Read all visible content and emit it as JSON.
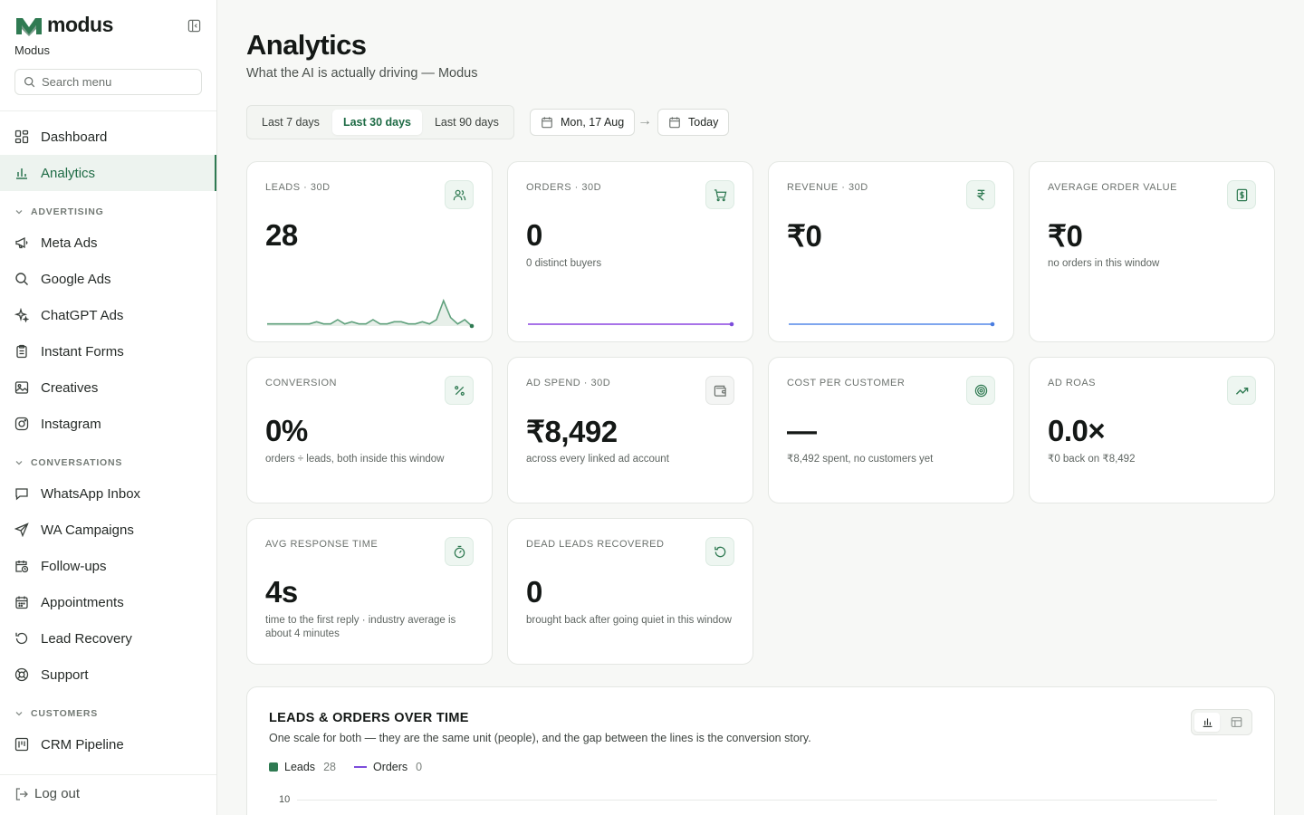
{
  "brand": {
    "name": "modus",
    "subtitle": "Modus"
  },
  "search": {
    "placeholder": "Search menu"
  },
  "sidebar": {
    "items": [
      {
        "label": "Dashboard",
        "icon": "dashboard-icon"
      },
      {
        "label": "Analytics",
        "icon": "analytics-icon",
        "active": true
      }
    ],
    "sections": [
      {
        "label": "ADVERTISING",
        "items": [
          {
            "label": "Meta Ads",
            "icon": "megaphone-icon"
          },
          {
            "label": "Google Ads",
            "icon": "search-icon"
          },
          {
            "label": "ChatGPT Ads",
            "icon": "sparkles-icon"
          },
          {
            "label": "Instant Forms",
            "icon": "clipboard-icon"
          },
          {
            "label": "Creatives",
            "icon": "image-icon"
          },
          {
            "label": "Instagram",
            "icon": "instagram-icon"
          }
        ]
      },
      {
        "label": "CONVERSATIONS",
        "items": [
          {
            "label": "WhatsApp Inbox",
            "icon": "message-icon"
          },
          {
            "label": "WA Campaigns",
            "icon": "send-icon"
          },
          {
            "label": "Follow-ups",
            "icon": "calendar-clock-icon"
          },
          {
            "label": "Appointments",
            "icon": "calendar-icon"
          },
          {
            "label": "Lead Recovery",
            "icon": "rotate-ccw-icon"
          },
          {
            "label": "Support",
            "icon": "lifebuoy-icon"
          }
        ]
      },
      {
        "label": "CUSTOMERS",
        "items": [
          {
            "label": "CRM Pipeline",
            "icon": "kanban-icon"
          }
        ]
      }
    ],
    "logout": "Log out"
  },
  "header": {
    "title": "Analytics",
    "subtitle": "What the AI is actually driving — Modus"
  },
  "filters": {
    "ranges": [
      "Last 7 days",
      "Last 30 days",
      "Last 90 days"
    ],
    "active_range": "Last 30 days",
    "date_from": "Mon, 17 Aug",
    "date_to": "Today"
  },
  "metrics": [
    {
      "label": "LEADS · 30D",
      "value": "28",
      "note": "",
      "icon": "users-icon",
      "spark": "leads"
    },
    {
      "label": "ORDERS · 30D",
      "value": "0",
      "note": "0 distinct buyers",
      "icon": "cart-icon",
      "spark": "flat-purple"
    },
    {
      "label": "REVENUE · 30D",
      "value": "₹0",
      "note": "",
      "icon": "rupee-icon",
      "spark": "flat-blue"
    },
    {
      "label": "AVERAGE ORDER VALUE",
      "value": "₹0",
      "note": "no orders in this window",
      "icon": "banknote-icon"
    },
    {
      "label": "CONVERSION",
      "value": "0%",
      "note": "orders ÷ leads, both inside this window",
      "icon": "percent-icon"
    },
    {
      "label": "AD SPEND · 30D",
      "value": "₹8,492",
      "note": "across every linked ad account",
      "icon": "wallet-icon"
    },
    {
      "label": "COST PER CUSTOMER",
      "value": "—",
      "note": "₹8,492 spent, no customers yet",
      "icon": "target-icon"
    },
    {
      "label": "AD ROAS",
      "value": "0.0×",
      "note": "₹0 back on ₹8,492",
      "icon": "trending-up-icon"
    },
    {
      "label": "AVG RESPONSE TIME",
      "value": "4s",
      "note": "time to the first reply · industry average is about 4 minutes",
      "icon": "timer-icon"
    },
    {
      "label": "DEAD LEADS RECOVERED",
      "value": "0",
      "note": "brought back after going quiet in this window",
      "icon": "rotate-ccw-icon"
    }
  ],
  "leads_sparkline": [
    0.5,
    0.5,
    0.5,
    0.5,
    0.5,
    0.5,
    0.5,
    1.0,
    0.5,
    0.5,
    1.5,
    0.5,
    1.0,
    0.5,
    0.5,
    1.5,
    0.5,
    0.5,
    1.0,
    1.0,
    0.5,
    0.5,
    1.0,
    0.5,
    1.5,
    6.0,
    2.0,
    0.5,
    1.5,
    0.0
  ],
  "chart": {
    "title": "LEADS & ORDERS OVER TIME",
    "subtitle": "One scale for both — they are the same unit (people), and the gap between the lines is the conversion story.",
    "legend": [
      {
        "name": "Leads",
        "value": "28",
        "color": "#2f7a52"
      },
      {
        "name": "Orders",
        "value": "0",
        "color": "#7c4ddb"
      }
    ],
    "y_tick_top": "10"
  },
  "colors": {
    "accent": "#2f7a52",
    "orders_line": "#7c4ddb",
    "revenue_line": "#5b8def"
  }
}
